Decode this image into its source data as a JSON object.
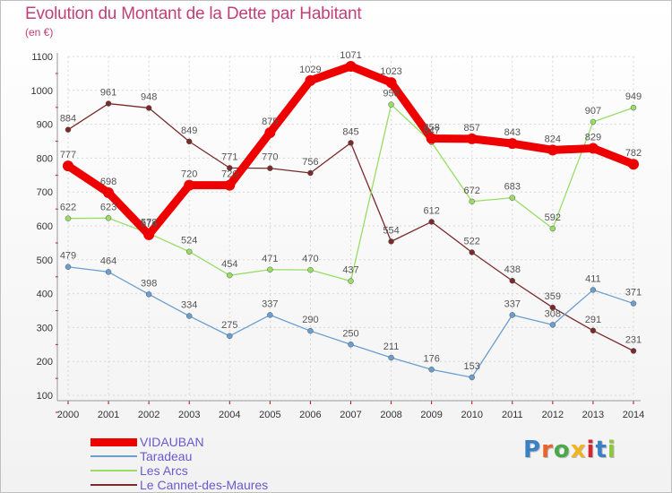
{
  "header": {
    "title": "Evolution du Montant de la Dette par Habitant",
    "unit": "(en €)"
  },
  "logo": {
    "text": "Proxiti",
    "colors": [
      "#3b7fc4",
      "#e8632a",
      "#4aa84a",
      "#f2b320",
      "#d6262d",
      "#3b7fc4",
      "#8cc63f"
    ]
  },
  "chart_data": {
    "type": "line",
    "x": [
      2000,
      2001,
      2002,
      2003,
      2004,
      2005,
      2006,
      2007,
      2008,
      2009,
      2010,
      2011,
      2012,
      2013,
      2014
    ],
    "ylim": [
      100,
      1100
    ],
    "yticks": [
      100,
      200,
      300,
      400,
      500,
      600,
      700,
      800,
      900,
      1000,
      1100
    ],
    "grid": true,
    "legend_position": "bottom-left",
    "series": [
      {
        "name": "Le Cannet-des-Maures",
        "color": "#7a2a2a",
        "values": [
          884,
          961,
          948,
          849,
          771,
          770,
          756,
          845,
          554,
          612,
          522,
          438,
          359,
          291,
          231
        ]
      },
      {
        "name": "Les Arcs",
        "color": "#99dd66",
        "values": [
          622,
          623,
          578,
          524,
          454,
          471,
          470,
          437,
          958,
          847,
          672,
          683,
          592,
          907,
          949
        ]
      },
      {
        "name": "Taradeau",
        "color": "#6a9ecf",
        "values": [
          479,
          464,
          398,
          334,
          275,
          337,
          290,
          250,
          211,
          176,
          153,
          337,
          308,
          411,
          371
        ]
      },
      {
        "name": "VIDAUBAN",
        "color": "#ee0000",
        "values": [
          777,
          698,
          574,
          720,
          720,
          875,
          1029,
          1071,
          1023,
          858,
          857,
          843,
          824,
          829,
          782
        ]
      }
    ],
    "value_labels": {
      "Le Cannet-des-Maures": [
        "884",
        "961",
        "948",
        "849",
        "771",
        "770",
        "756",
        "845",
        "554",
        "612",
        "522",
        "438",
        "359",
        "291",
        "231"
      ],
      "Les Arcs": [
        "622",
        "623",
        "578",
        "524",
        "454",
        "471",
        "470",
        "437",
        "958",
        "847",
        "672",
        "683",
        "592",
        "907",
        "949"
      ],
      "Taradeau": [
        "479",
        "464",
        "398",
        "334",
        "275",
        "337",
        "290",
        "250",
        "211",
        "176",
        "153",
        "337",
        "308",
        "411",
        "371"
      ],
      "VIDAUBAN": [
        "777",
        "698",
        "574",
        "720",
        "720",
        "875",
        "1029",
        "1071",
        "1023",
        "858",
        "857",
        "843",
        "824",
        "829",
        "782"
      ]
    },
    "legend_order": [
      "VIDAUBAN",
      "Taradeau",
      "Les Arcs",
      "Le Cannet-des-Maures"
    ]
  }
}
